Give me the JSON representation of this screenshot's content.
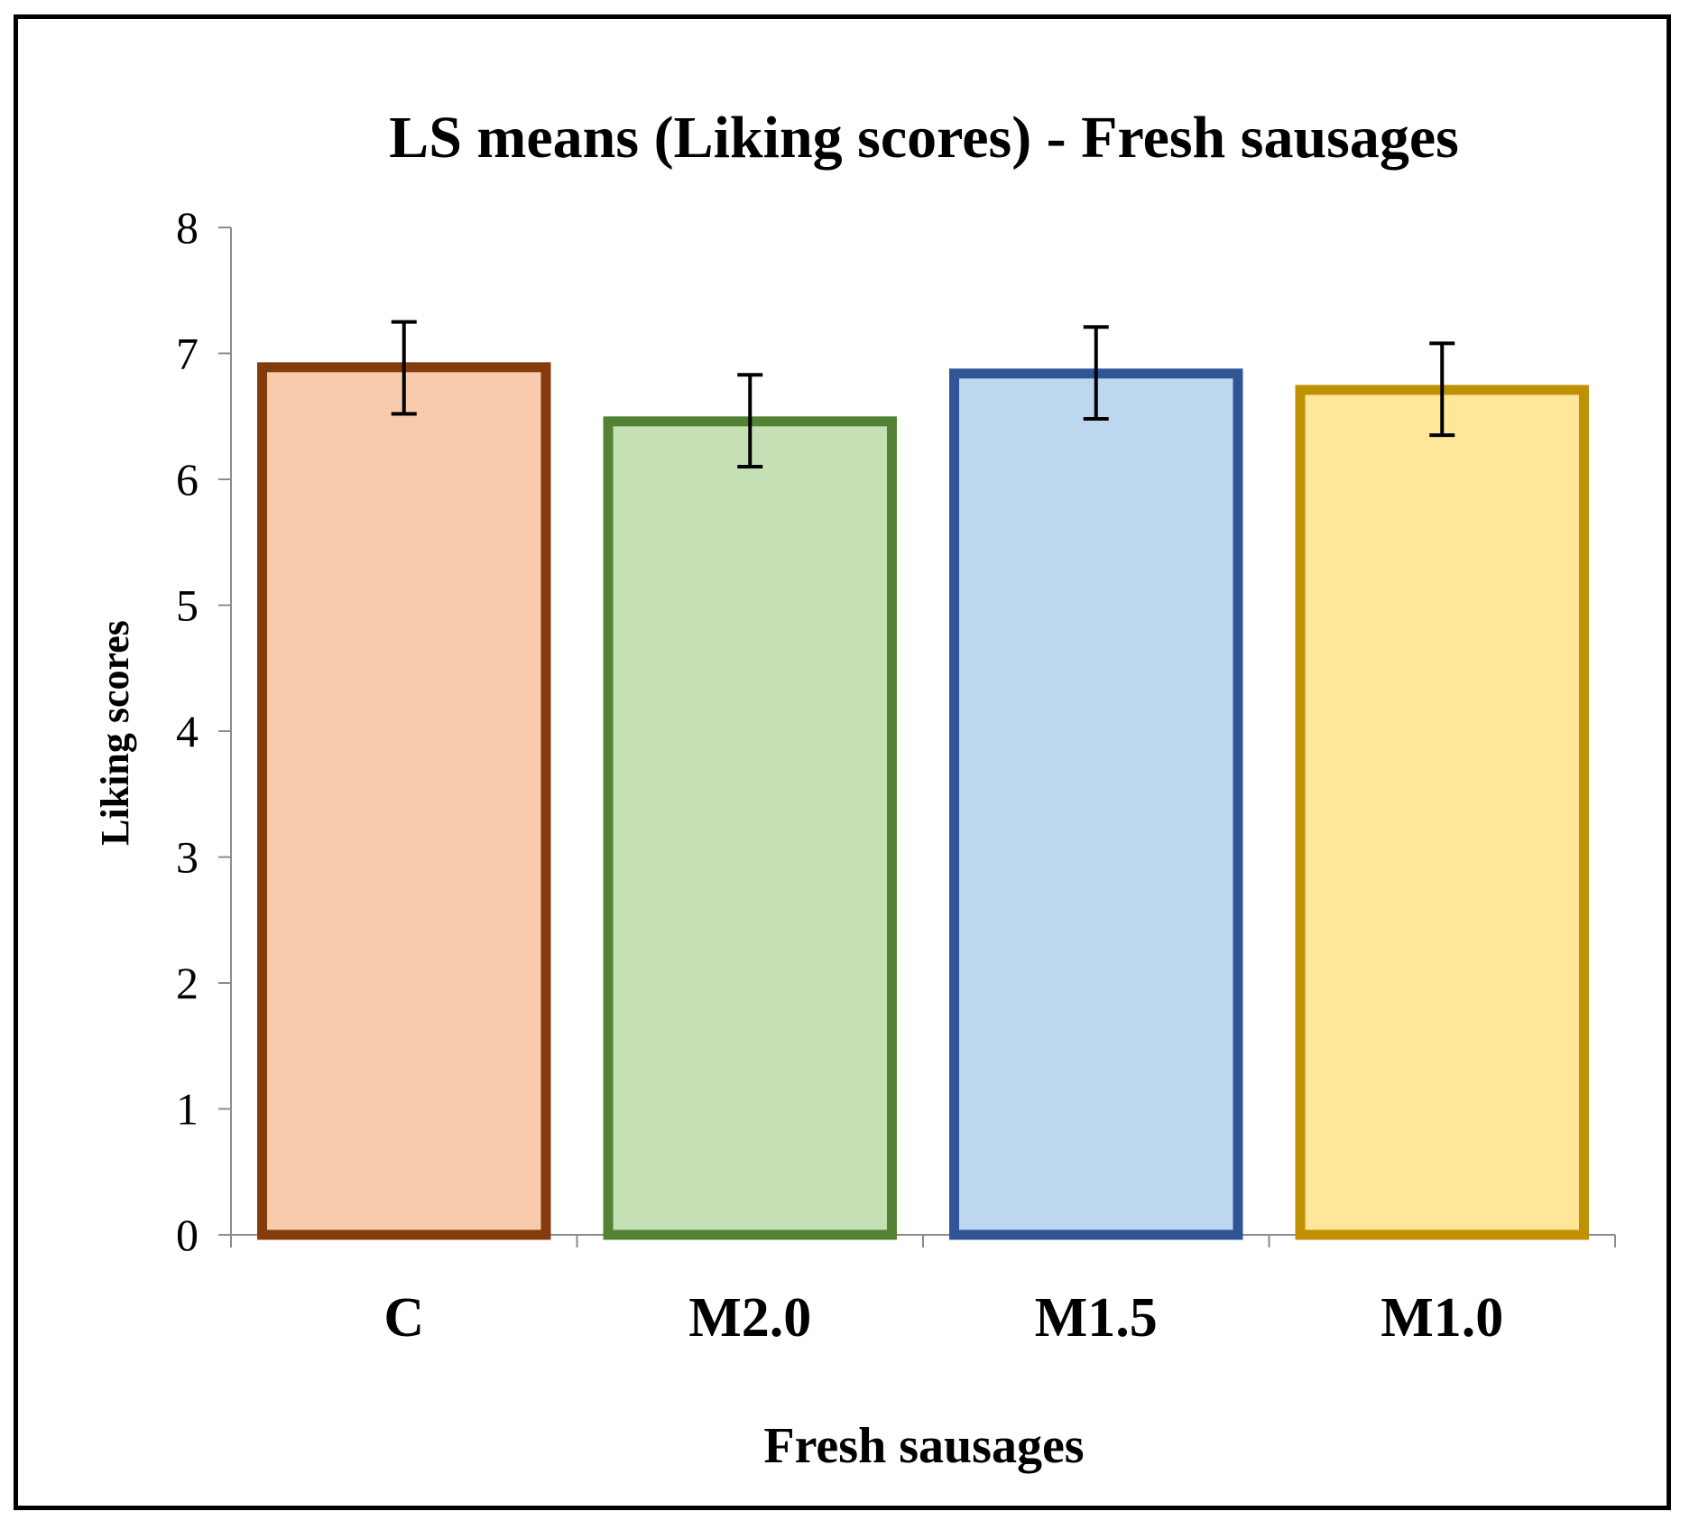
{
  "chart_data": {
    "type": "bar",
    "title": "LS means (Liking scores) - Fresh sausages",
    "xlabel": "Fresh sausages",
    "ylabel": "Liking scores",
    "ylim": [
      0,
      8
    ],
    "yticks": [
      0,
      1,
      2,
      3,
      4,
      5,
      6,
      7,
      8
    ],
    "ytick_labels": [
      "0",
      "1",
      "2",
      "3",
      "4",
      "5",
      "6",
      "7",
      "8"
    ],
    "grid": false,
    "categories": [
      "C",
      "M2.0",
      "M1.5",
      "M1.0"
    ],
    "values": [
      6.89,
      6.46,
      6.84,
      6.71
    ],
    "error_low": [
      6.52,
      6.1,
      6.48,
      6.35
    ],
    "error_high": [
      7.25,
      6.83,
      7.21,
      7.08
    ],
    "fill_colors": [
      "#F8CBAD",
      "#C5E0B4",
      "#BDD7EE",
      "#FFE699"
    ],
    "edge_colors": [
      "#843C0C",
      "#548235",
      "#2F5597",
      "#BF9000"
    ]
  }
}
